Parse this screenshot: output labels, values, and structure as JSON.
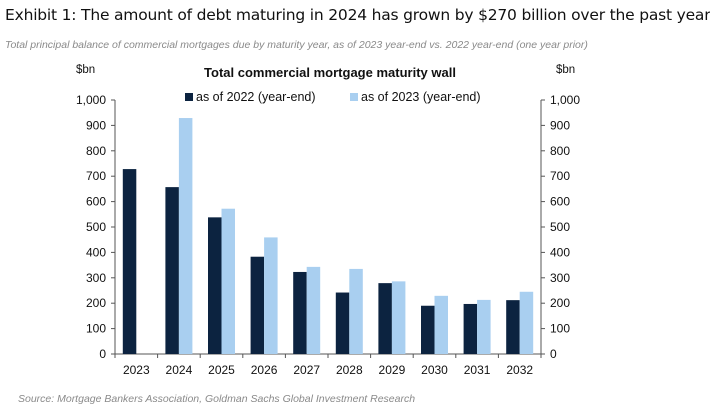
{
  "header": {
    "exhibit_title": "Exhibit 1: The amount of debt maturing in 2024 has grown by $270 billion over the past year",
    "subtitle": "Total principal balance of commercial mortgages due by maturity year, as of 2023 year-end vs. 2022 year-end (one year prior)",
    "source": "Source: Mortgage Bankers Association, Goldman Sachs Global Investment Research"
  },
  "chart_data": {
    "type": "bar",
    "title": "Total commercial mortgage maturity wall",
    "ylabel_left": "$bn",
    "ylabel_right": "$bn",
    "xlabel": "",
    "ylim": [
      0,
      1000
    ],
    "yticks": [
      0,
      100,
      200,
      300,
      400,
      500,
      600,
      700,
      800,
      900,
      1000
    ],
    "ytick_labels": [
      "0",
      "100",
      "200",
      "300",
      "400",
      "500",
      "600",
      "700",
      "800",
      "900",
      "1,000"
    ],
    "categories": [
      "2023",
      "2024",
      "2025",
      "2026",
      "2027",
      "2028",
      "2029",
      "2030",
      "2031",
      "2032"
    ],
    "legend_position": "top",
    "grid": false,
    "series": [
      {
        "name": "as of 2022 (year-end)",
        "color": "#0c2340",
        "values": [
          728,
          657,
          538,
          383,
          323,
          242,
          279,
          190,
          197,
          212
        ]
      },
      {
        "name": "as of 2023 (year-end)",
        "color": "#a9cff0",
        "values": [
          null,
          929,
          572,
          459,
          343,
          335,
          286,
          229,
          213,
          245
        ]
      }
    ]
  }
}
